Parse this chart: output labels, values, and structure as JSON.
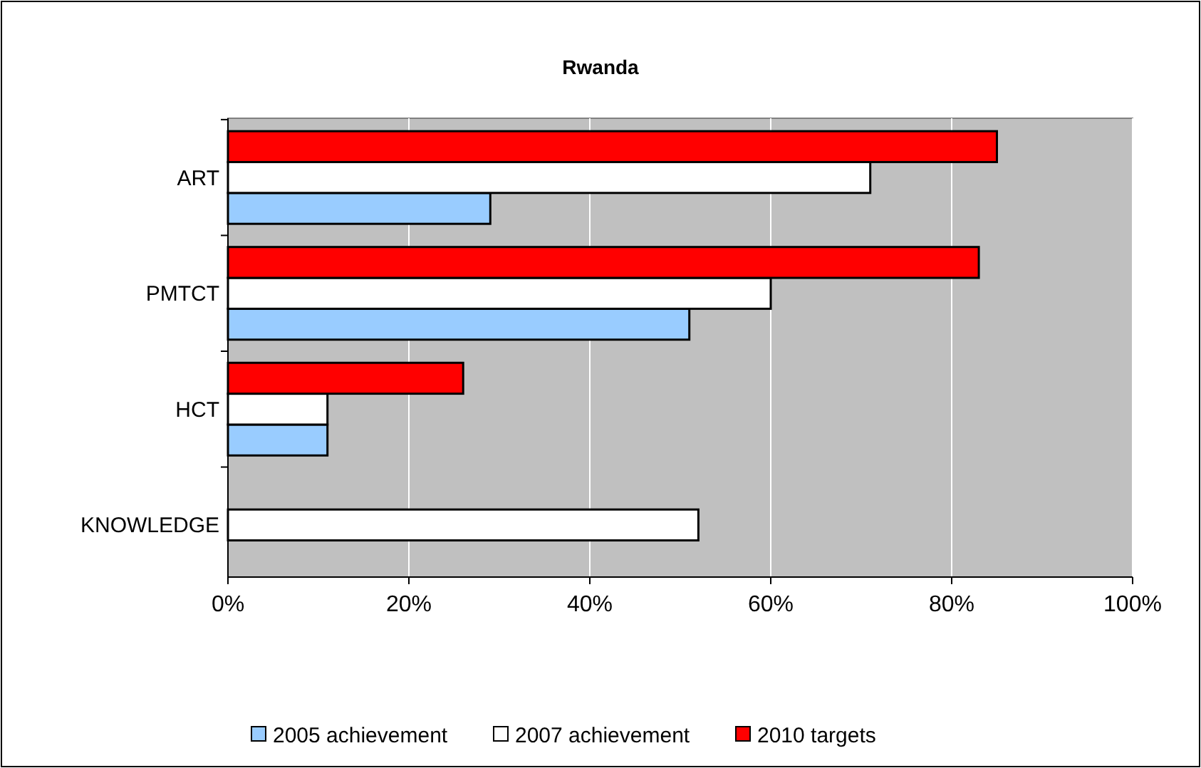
{
  "chart_data": {
    "type": "bar",
    "orientation": "horizontal",
    "title": "Rwanda",
    "categories": [
      "ART",
      "PMTCT",
      "HCT",
      "KNOWLEDGE"
    ],
    "series": [
      {
        "name": "2005 achievement",
        "color": "#99ccff",
        "values": [
          29,
          51,
          11,
          0
        ]
      },
      {
        "name": "2007 achievement",
        "color": "#ffffff",
        "values": [
          71,
          60,
          11,
          52
        ]
      },
      {
        "name": "2010 targets",
        "color": "#ff0000",
        "values": [
          85,
          83,
          26,
          0
        ]
      }
    ],
    "xlim": [
      0,
      100
    ],
    "xticks": [
      {
        "value": 0,
        "label": "0%"
      },
      {
        "value": 20,
        "label": "20%"
      },
      {
        "value": 40,
        "label": "40%"
      },
      {
        "value": 60,
        "label": "60%"
      },
      {
        "value": 80,
        "label": "80%"
      },
      {
        "value": 100,
        "label": "100%"
      }
    ],
    "grid": "x",
    "legend": "bottom"
  }
}
